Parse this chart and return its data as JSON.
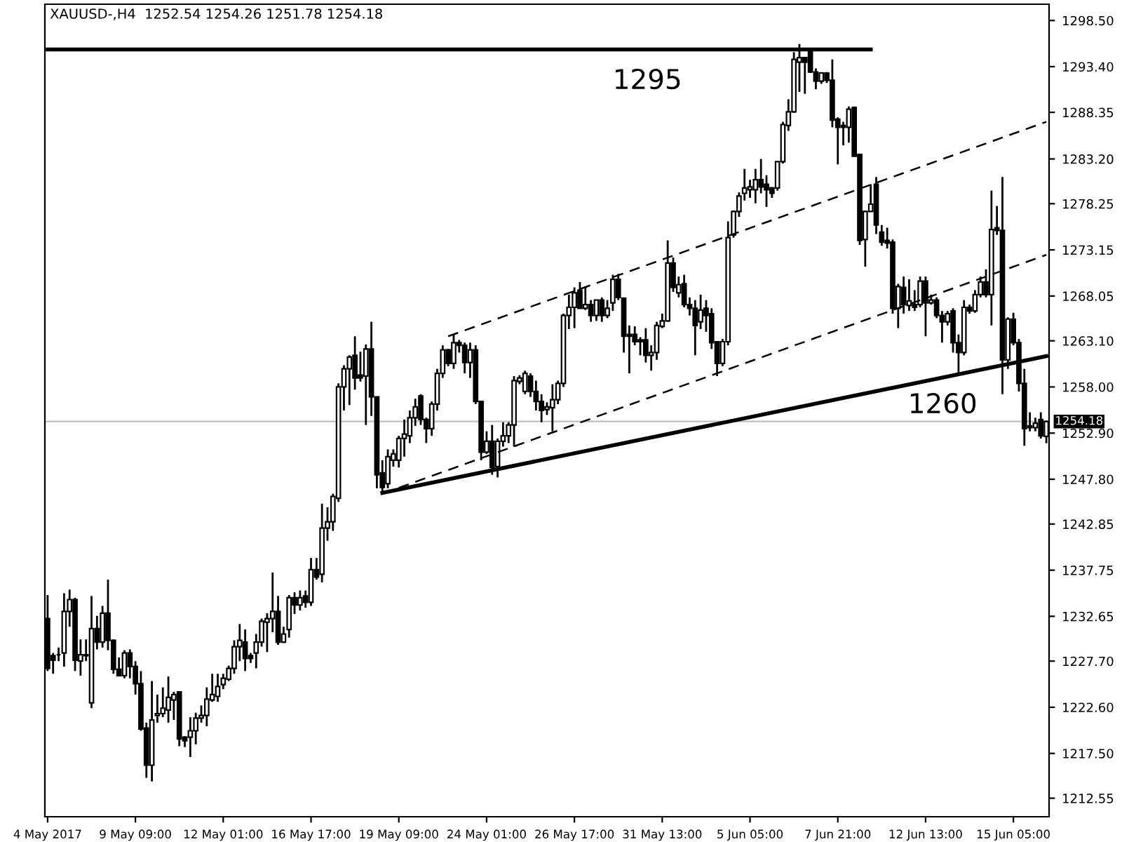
{
  "chart_data": {
    "type": "candlestick",
    "title": "XAUUSD-,H4  1252.54 1254.26 1251.78 1254.18",
    "color": "#000000",
    "categories": [
      "4 May 2017",
      null,
      null,
      null,
      null,
      null,
      null,
      null,
      null,
      null,
      null,
      null,
      null,
      null,
      null,
      null,
      "9 May 09:00",
      null,
      null,
      null,
      null,
      null,
      null,
      null,
      null,
      null,
      null,
      null,
      null,
      null,
      null,
      null,
      "12 May 01:00",
      null,
      null,
      null,
      null,
      null,
      null,
      null,
      null,
      null,
      null,
      null,
      null,
      null,
      null,
      null,
      "16 May 17:00",
      null,
      null,
      null,
      null,
      null,
      null,
      null,
      null,
      null,
      null,
      null,
      null,
      null,
      null,
      null,
      "19 May 09:00",
      null,
      null,
      null,
      null,
      null,
      null,
      null,
      null,
      null,
      null,
      null,
      null,
      null,
      null,
      null,
      "24 May 01:00",
      null,
      null,
      null,
      null,
      null,
      null,
      null,
      null,
      null,
      null,
      null,
      null,
      null,
      null,
      null,
      "26 May 17:00",
      null,
      null,
      null,
      null,
      null,
      null,
      null,
      null,
      null,
      null,
      null,
      null,
      null,
      null,
      null,
      "31 May 13:00",
      null,
      null,
      null,
      null,
      null,
      null,
      null,
      null,
      null,
      null,
      null,
      null,
      null,
      null,
      null,
      "5 Jun 05:00",
      null,
      null,
      null,
      null,
      null,
      null,
      null,
      null,
      null,
      null,
      null,
      null,
      null,
      null,
      null,
      "7 Jun 21:00",
      null,
      null,
      null,
      null,
      null,
      null,
      null,
      null,
      null,
      null,
      null,
      null,
      null,
      null,
      null,
      "12 Jun 13:00",
      null,
      null,
      null,
      null,
      null,
      null,
      null,
      null,
      null,
      null,
      null,
      null,
      null,
      null,
      null,
      "15 Jun 05:00",
      null,
      null,
      null,
      null,
      null,
      null
    ],
    "ohlc": [
      [
        1232.4,
        1235.0,
        1226.6,
        1226.9
      ],
      [
        1228.3,
        1228.6,
        1226.3,
        1227.8
      ],
      [
        1228.4,
        1229.2,
        1227.7,
        1228.4
      ],
      [
        1228.6,
        1235.2,
        1227.1,
        1233.2
      ],
      [
        1233.2,
        1235.6,
        1231.5,
        1234.5
      ],
      [
        1234.5,
        1234.7,
        1226.6,
        1227.8
      ],
      [
        1227.7,
        1230.1,
        1226.1,
        1228.4
      ],
      [
        1228.4,
        1230.1,
        1227.7,
        1228.3
      ],
      [
        1223.1,
        1234.9,
        1222.5,
        1231.3
      ],
      [
        1231.3,
        1232.7,
        1229.0,
        1229.8
      ],
      [
        1229.8,
        1233.8,
        1229.2,
        1233.0
      ],
      [
        1233.0,
        1236.7,
        1228.9,
        1230.0
      ],
      [
        1230.0,
        1230.1,
        1226.3,
        1226.8
      ],
      [
        1226.8,
        1228.1,
        1226.0,
        1226.1
      ],
      [
        1226.1,
        1228.9,
        1225.8,
        1228.6
      ],
      [
        1228.6,
        1229.0,
        1225.8,
        1227.1
      ],
      [
        1227.1,
        1227.7,
        1224.0,
        1225.2
      ],
      [
        1225.2,
        1226.6,
        1220.0,
        1220.2
      ],
      [
        1220.3,
        1220.9,
        1214.8,
        1216.2
      ],
      [
        1216.2,
        1225.5,
        1214.4,
        1221.2
      ],
      [
        1221.7,
        1224.0,
        1220.9,
        1221.9
      ],
      [
        1221.9,
        1224.8,
        1221.5,
        1222.5
      ],
      [
        1222.3,
        1226.0,
        1220.9,
        1223.7
      ],
      [
        1223.4,
        1224.3,
        1221.2,
        1224.0
      ],
      [
        1224.3,
        1224.3,
        1218.3,
        1219.1
      ],
      [
        1219.3,
        1219.4,
        1218.2,
        1218.9
      ],
      [
        1219.3,
        1221.5,
        1217.1,
        1220.0
      ],
      [
        1220.0,
        1222.0,
        1218.5,
        1221.4
      ],
      [
        1221.4,
        1222.8,
        1220.9,
        1221.7
      ],
      [
        1221.7,
        1224.8,
        1220.5,
        1223.5
      ],
      [
        1223.4,
        1226.3,
        1223.2,
        1224.0
      ],
      [
        1223.8,
        1226.3,
        1223.2,
        1224.9
      ],
      [
        1225.1,
        1226.3,
        1224.6,
        1225.8
      ],
      [
        1225.7,
        1227.2,
        1225.5,
        1226.9
      ],
      [
        1226.9,
        1230.0,
        1226.3,
        1229.3
      ],
      [
        1229.3,
        1231.8,
        1227.7,
        1230.0
      ],
      [
        1229.8,
        1231.2,
        1226.6,
        1228.0
      ],
      [
        1228.3,
        1228.6,
        1227.5,
        1228.0
      ],
      [
        1228.6,
        1230.7,
        1226.9,
        1229.8
      ],
      [
        1229.8,
        1232.4,
        1229.3,
        1232.1
      ],
      [
        1232.0,
        1233.0,
        1228.7,
        1232.4
      ],
      [
        1232.4,
        1237.5,
        1230.9,
        1233.2
      ],
      [
        1233.2,
        1234.9,
        1229.5,
        1229.8
      ],
      [
        1229.8,
        1231.5,
        1229.7,
        1230.7
      ],
      [
        1231.2,
        1235.0,
        1230.3,
        1234.7
      ],
      [
        1234.7,
        1235.3,
        1232.9,
        1233.9
      ],
      [
        1233.9,
        1235.5,
        1233.3,
        1234.7
      ],
      [
        1234.9,
        1235.5,
        1233.6,
        1234.2
      ],
      [
        1234.2,
        1239.1,
        1233.8,
        1237.8
      ],
      [
        1237.8,
        1239.1,
        1236.7,
        1237.0
      ],
      [
        1237.3,
        1245.1,
        1236.4,
        1242.4
      ],
      [
        1242.4,
        1244.7,
        1241.0,
        1243.1
      ],
      [
        1243.1,
        1246.2,
        1242.1,
        1245.9
      ],
      [
        1245.7,
        1258.4,
        1245.3,
        1258.0
      ],
      [
        1258.0,
        1260.4,
        1255.4,
        1260.0
      ],
      [
        1260.0,
        1261.5,
        1256.0,
        1261.3
      ],
      [
        1261.5,
        1263.6,
        1257.7,
        1259.0
      ],
      [
        1259.3,
        1261.9,
        1258.6,
        1259.0
      ],
      [
        1259.2,
        1262.7,
        1253.8,
        1262.2
      ],
      [
        1262.2,
        1265.2,
        1254.8,
        1256.9
      ],
      [
        1256.9,
        1256.9,
        1246.8,
        1248.3
      ],
      [
        1248.5,
        1249.9,
        1246.2,
        1246.9
      ],
      [
        1247.3,
        1251.1,
        1246.8,
        1250.3
      ],
      [
        1249.9,
        1251.1,
        1249.2,
        1250.6
      ],
      [
        1249.9,
        1252.6,
        1249.1,
        1252.3
      ],
      [
        1252.3,
        1254.4,
        1250.3,
        1252.8
      ],
      [
        1252.6,
        1255.4,
        1251.8,
        1254.6
      ],
      [
        1254.6,
        1256.7,
        1253.7,
        1255.8
      ],
      [
        1257.0,
        1257.2,
        1253.8,
        1254.4
      ],
      [
        1254.4,
        1254.6,
        1251.8,
        1253.4
      ],
      [
        1253.4,
        1256.4,
        1252.6,
        1256.1
      ],
      [
        1256.1,
        1260.0,
        1255.4,
        1259.5
      ],
      [
        1259.5,
        1262.6,
        1259.0,
        1262.1
      ],
      [
        1262.1,
        1262.2,
        1260.3,
        1260.6
      ],
      [
        1260.6,
        1263.8,
        1260.0,
        1262.9
      ],
      [
        1262.9,
        1263.2,
        1261.8,
        1262.6
      ],
      [
        1262.6,
        1262.9,
        1259.5,
        1260.7
      ],
      [
        1260.7,
        1262.9,
        1259.0,
        1262.1
      ],
      [
        1262.1,
        1262.6,
        1256.1,
        1256.4
      ],
      [
        1256.4,
        1256.4,
        1249.9,
        1250.8
      ],
      [
        1250.8,
        1253.1,
        1250.6,
        1252.0
      ],
      [
        1252.0,
        1253.8,
        1248.3,
        1249.1
      ],
      [
        1249.2,
        1252.3,
        1248.0,
        1252.0
      ],
      [
        1252.0,
        1254.1,
        1251.4,
        1252.6
      ],
      [
        1252.6,
        1254.1,
        1251.8,
        1253.8
      ],
      [
        1253.8,
        1259.2,
        1251.4,
        1258.7
      ],
      [
        1258.6,
        1259.3,
        1258.3,
        1259.0
      ],
      [
        1257.5,
        1259.8,
        1257.2,
        1259.5
      ],
      [
        1259.2,
        1259.5,
        1256.9,
        1257.5
      ],
      [
        1257.5,
        1258.7,
        1255.4,
        1256.4
      ],
      [
        1256.4,
        1257.2,
        1254.1,
        1255.4
      ],
      [
        1255.5,
        1256.3,
        1254.9,
        1255.8
      ],
      [
        1255.7,
        1258.3,
        1253.1,
        1256.6
      ],
      [
        1256.6,
        1258.7,
        1256.1,
        1258.4
      ],
      [
        1258.4,
        1266.1,
        1258.0,
        1265.9
      ],
      [
        1265.9,
        1268.2,
        1264.4,
        1266.8
      ],
      [
        1266.8,
        1269.0,
        1264.5,
        1268.4
      ],
      [
        1268.7,
        1269.6,
        1266.7,
        1266.7
      ],
      [
        1266.7,
        1269.1,
        1266.5,
        1267.1
      ],
      [
        1267.1,
        1267.6,
        1265.2,
        1265.9
      ],
      [
        1265.9,
        1267.6,
        1265.3,
        1267.6
      ],
      [
        1267.6,
        1267.9,
        1265.2,
        1265.9
      ],
      [
        1265.9,
        1267.6,
        1265.6,
        1266.7
      ],
      [
        1267.3,
        1270.4,
        1266.4,
        1269.9
      ],
      [
        1269.9,
        1270.5,
        1267.6,
        1267.9
      ],
      [
        1267.8,
        1267.9,
        1261.8,
        1263.6
      ],
      [
        1263.8,
        1264.8,
        1259.5,
        1263.6
      ],
      [
        1263.8,
        1264.7,
        1262.6,
        1263.0
      ],
      [
        1263.2,
        1263.5,
        1261.5,
        1263.0
      ],
      [
        1263.2,
        1264.5,
        1260.7,
        1261.5
      ],
      [
        1261.5,
        1262.6,
        1259.8,
        1261.8
      ],
      [
        1261.8,
        1265.2,
        1261.0,
        1264.8
      ],
      [
        1264.7,
        1266.1,
        1264.5,
        1265.3
      ],
      [
        1265.3,
        1274.2,
        1265.2,
        1271.7
      ],
      [
        1271.7,
        1272.3,
        1268.5,
        1269.0
      ],
      [
        1268.4,
        1270.2,
        1267.9,
        1269.3
      ],
      [
        1269.4,
        1270.4,
        1266.8,
        1267.1
      ],
      [
        1267.1,
        1267.9,
        1265.9,
        1266.7
      ],
      [
        1266.7,
        1267.6,
        1261.5,
        1264.8
      ],
      [
        1265.2,
        1268.2,
        1264.4,
        1266.5
      ],
      [
        1266.7,
        1267.6,
        1264.1,
        1265.9
      ],
      [
        1266.1,
        1266.7,
        1262.2,
        1262.9
      ],
      [
        1263.0,
        1263.0,
        1259.2,
        1260.6
      ],
      [
        1260.6,
        1263.3,
        1260.3,
        1263.0
      ],
      [
        1263.0,
        1276.3,
        1262.6,
        1274.5
      ],
      [
        1274.8,
        1277.5,
        1274.5,
        1277.4
      ],
      [
        1277.4,
        1279.5,
        1276.8,
        1279.1
      ],
      [
        1279.4,
        1282.1,
        1278.6,
        1280.0
      ],
      [
        1279.8,
        1280.9,
        1278.9,
        1280.1
      ],
      [
        1279.8,
        1282.1,
        1278.3,
        1280.9
      ],
      [
        1280.9,
        1283.2,
        1279.4,
        1280.1
      ],
      [
        1280.4,
        1281.4,
        1277.9,
        1279.8
      ],
      [
        1280.0,
        1280.1,
        1278.9,
        1279.4
      ],
      [
        1280.0,
        1282.9,
        1279.7,
        1282.9
      ],
      [
        1282.9,
        1287.3,
        1282.7,
        1287.0
      ],
      [
        1286.9,
        1289.8,
        1286.3,
        1288.4
      ],
      [
        1288.4,
        1295.0,
        1288.3,
        1294.2
      ],
      [
        1293.9,
        1295.9,
        1290.6,
        1294.4
      ],
      [
        1294.4,
        1294.4,
        1290.4,
        1293.9
      ],
      [
        1295.3,
        1295.4,
        1292.7,
        1292.8
      ],
      [
        1292.8,
        1293.2,
        1290.9,
        1291.8
      ],
      [
        1291.8,
        1292.8,
        1291.5,
        1292.7
      ],
      [
        1292.7,
        1292.8,
        1291.6,
        1291.9
      ],
      [
        1291.9,
        1294.2,
        1286.7,
        1287.5
      ],
      [
        1287.6,
        1287.8,
        1282.6,
        1286.7
      ],
      [
        1286.9,
        1287.3,
        1284.7,
        1286.7
      ],
      [
        1286.7,
        1289.0,
        1285.0,
        1288.7
      ],
      [
        1288.9,
        1289.0,
        1283.5,
        1283.5
      ],
      [
        1283.7,
        1283.7,
        1273.7,
        1274.2
      ],
      [
        1274.3,
        1277.5,
        1271.3,
        1277.4
      ],
      [
        1277.4,
        1280.4,
        1277.4,
        1278.2
      ],
      [
        1280.4,
        1281.2,
        1274.9,
        1275.9
      ],
      [
        1275.1,
        1275.9,
        1273.6,
        1274.0
      ],
      [
        1274.2,
        1275.6,
        1273.3,
        1273.9
      ],
      [
        1274.0,
        1274.3,
        1266.1,
        1266.7
      ],
      [
        1266.7,
        1269.4,
        1264.5,
        1269.1
      ],
      [
        1269.0,
        1270.2,
        1266.1,
        1267.1
      ],
      [
        1267.0,
        1269.9,
        1266.4,
        1267.5
      ],
      [
        1267.1,
        1268.7,
        1266.4,
        1266.8
      ],
      [
        1267.1,
        1270.2,
        1266.8,
        1269.7
      ],
      [
        1269.7,
        1270.2,
        1263.6,
        1267.3
      ],
      [
        1267.3,
        1268.2,
        1267.1,
        1267.6
      ],
      [
        1267.6,
        1267.9,
        1265.6,
        1265.9
      ],
      [
        1265.9,
        1266.4,
        1262.9,
        1265.2
      ],
      [
        1265.2,
        1266.4,
        1264.8,
        1266.1
      ],
      [
        1266.4,
        1266.7,
        1261.8,
        1262.9
      ],
      [
        1262.9,
        1263.8,
        1259.5,
        1261.8
      ],
      [
        1261.8,
        1267.6,
        1261.5,
        1266.8
      ],
      [
        1266.8,
        1267.1,
        1266.1,
        1266.4
      ],
      [
        1266.4,
        1268.7,
        1266.2,
        1268.2
      ],
      [
        1268.2,
        1270.2,
        1267.9,
        1269.6
      ],
      [
        1269.6,
        1271.0,
        1267.9,
        1268.2
      ],
      [
        1268.2,
        1279.7,
        1264.8,
        1275.4
      ],
      [
        1275.6,
        1278.0,
        1274.8,
        1275.3
      ],
      [
        1275.3,
        1281.2,
        1257.2,
        1261.0
      ],
      [
        1261.0,
        1265.7,
        1260.0,
        1265.5
      ],
      [
        1265.5,
        1266.2,
        1262.6,
        1262.9
      ],
      [
        1262.9,
        1263.3,
        1257.5,
        1258.4
      ],
      [
        1258.4,
        1260.0,
        1251.5,
        1253.4
      ],
      [
        1253.7,
        1255.2,
        1253.1,
        1253.5
      ],
      [
        1253.5,
        1254.6,
        1253.1,
        1254.0
      ],
      [
        1254.4,
        1255.2,
        1252.3,
        1252.6
      ],
      [
        1252.54,
        1254.26,
        1251.78,
        1254.18
      ]
    ],
    "series": [
      {
        "type": "line",
        "values": [
          1295.3,
          null,
          null,
          null,
          null,
          null,
          null,
          null,
          null,
          null,
          null,
          null,
          null,
          null,
          null,
          null,
          null,
          null,
          null,
          null,
          null,
          null,
          null,
          null,
          null,
          null,
          null,
          null,
          null,
          null,
          null,
          null,
          null,
          null,
          null,
          null,
          null,
          null,
          null,
          null,
          null,
          null,
          null,
          null,
          null,
          null,
          null,
          null,
          null,
          null,
          null,
          null,
          null,
          null,
          null,
          null,
          null,
          null,
          null,
          null,
          null,
          null,
          null,
          null,
          null,
          null,
          null,
          null,
          null,
          null,
          null,
          null,
          null,
          null,
          null,
          null,
          null,
          null,
          null,
          null,
          null,
          null,
          null,
          null,
          null,
          null,
          null,
          null,
          null,
          null,
          null,
          null,
          null,
          null,
          null,
          null,
          null,
          null,
          null,
          null,
          null,
          null,
          null,
          null,
          null,
          null,
          null,
          null,
          null,
          null,
          null,
          null,
          null,
          null,
          null,
          null,
          null,
          null,
          null,
          null,
          null,
          null,
          null,
          null,
          null,
          null,
          null,
          null,
          null,
          null,
          null,
          null,
          null,
          null,
          null,
          null,
          null,
          null,
          null,
          null,
          null,
          null,
          null,
          null,
          null,
          null,
          null,
          null,
          null,
          null,
          1295.3,
          null,
          null,
          null,
          null,
          null,
          null,
          null,
          null,
          null,
          null,
          null,
          null,
          null,
          null,
          null,
          null,
          null,
          null,
          null,
          null,
          null,
          null,
          null,
          null,
          null,
          null,
          null,
          null,
          null,
          null,
          null,
          null
        ],
        "color": "#000000",
        "line_style": "solid"
      },
      {
        "type": "line",
        "values": [
          null,
          null,
          null,
          null,
          null,
          null,
          null,
          null,
          null,
          null,
          null,
          null,
          null,
          null,
          null,
          null,
          null,
          null,
          null,
          null,
          null,
          null,
          null,
          null,
          null,
          null,
          null,
          null,
          null,
          null,
          null,
          null,
          null,
          null,
          null,
          null,
          null,
          null,
          null,
          null,
          null,
          null,
          null,
          null,
          null,
          null,
          null,
          null,
          null,
          null,
          null,
          null,
          null,
          null,
          null,
          null,
          null,
          null,
          null,
          null,
          null,
          1246.3,
          null,
          null,
          null,
          null,
          null,
          null,
          null,
          null,
          null,
          null,
          null,
          null,
          null,
          null,
          null,
          null,
          null,
          null,
          null,
          null,
          null,
          null,
          null,
          null,
          null,
          null,
          null,
          null,
          null,
          null,
          null,
          null,
          null,
          null,
          null,
          null,
          null,
          null,
          null,
          null,
          null,
          null,
          null,
          null,
          null,
          null,
          null,
          null,
          null,
          null,
          null,
          null,
          null,
          null,
          null,
          null,
          null,
          null,
          null,
          null,
          null,
          null,
          null,
          null,
          null,
          null,
          null,
          null,
          null,
          null,
          null,
          null,
          null,
          null,
          null,
          null,
          null,
          null,
          null,
          null,
          null,
          null,
          null,
          null,
          null,
          null,
          null,
          null,
          null,
          null,
          null,
          null,
          null,
          null,
          null,
          null,
          null,
          null,
          null,
          null,
          null,
          null,
          null,
          null,
          null,
          null,
          null,
          null,
          null,
          null,
          null,
          null,
          null,
          null,
          null,
          null,
          null,
          null,
          null,
          null,
          1261.4
        ],
        "color": "#000000",
        "line_style": "solid"
      },
      {
        "type": "line",
        "values": [
          null,
          null,
          null,
          null,
          null,
          null,
          null,
          null,
          null,
          null,
          null,
          null,
          null,
          null,
          null,
          null,
          null,
          null,
          null,
          null,
          null,
          null,
          null,
          null,
          null,
          null,
          null,
          null,
          null,
          null,
          null,
          null,
          null,
          null,
          null,
          null,
          null,
          null,
          null,
          null,
          null,
          null,
          null,
          null,
          null,
          null,
          null,
          null,
          null,
          null,
          null,
          null,
          null,
          null,
          null,
          null,
          null,
          null,
          null,
          null,
          null,
          null,
          null,
          null,
          null,
          null,
          null,
          null,
          null,
          null,
          null,
          null,
          null,
          1263.6,
          null,
          null,
          null,
          null,
          null,
          null,
          null,
          null,
          null,
          null,
          null,
          null,
          null,
          null,
          null,
          null,
          null,
          null,
          null,
          null,
          null,
          null,
          null,
          null,
          null,
          null,
          null,
          null,
          null,
          null,
          null,
          null,
          null,
          null,
          null,
          null,
          null,
          null,
          null,
          null,
          null,
          null,
          null,
          null,
          null,
          null,
          null,
          null,
          null,
          null,
          null,
          null,
          null,
          null,
          null,
          null,
          null,
          null,
          null,
          null,
          null,
          null,
          null,
          null,
          null,
          null,
          null,
          null,
          null,
          null,
          null,
          null,
          null,
          null,
          null,
          null,
          null,
          null,
          null,
          null,
          null,
          null,
          null,
          null,
          null,
          null,
          null,
          null,
          null,
          null,
          null,
          null,
          null,
          null,
          null,
          null,
          null,
          null,
          null,
          null,
          null,
          null,
          null,
          null,
          null,
          null,
          null,
          null,
          1287.3
        ],
        "color": "#000000",
        "line_style": "dashed"
      },
      {
        "type": "line",
        "values": [
          null,
          null,
          null,
          null,
          null,
          null,
          null,
          null,
          null,
          null,
          null,
          null,
          null,
          null,
          null,
          null,
          null,
          null,
          null,
          null,
          null,
          null,
          null,
          null,
          null,
          null,
          null,
          null,
          null,
          null,
          null,
          null,
          null,
          null,
          null,
          null,
          null,
          null,
          null,
          null,
          null,
          null,
          null,
          null,
          null,
          null,
          null,
          null,
          null,
          null,
          null,
          null,
          null,
          null,
          null,
          null,
          null,
          null,
          null,
          null,
          null,
          1246.2,
          null,
          null,
          null,
          null,
          null,
          null,
          null,
          null,
          null,
          null,
          null,
          null,
          null,
          null,
          null,
          null,
          null,
          null,
          null,
          null,
          null,
          null,
          null,
          null,
          null,
          null,
          null,
          null,
          null,
          null,
          null,
          null,
          null,
          null,
          null,
          null,
          null,
          null,
          null,
          null,
          null,
          null,
          null,
          null,
          null,
          null,
          null,
          null,
          null,
          null,
          null,
          null,
          null,
          null,
          null,
          null,
          null,
          null,
          null,
          null,
          null,
          null,
          null,
          null,
          null,
          null,
          null,
          null,
          null,
          null,
          null,
          null,
          null,
          null,
          null,
          null,
          null,
          null,
          null,
          null,
          null,
          null,
          null,
          null,
          null,
          null,
          null,
          null,
          null,
          null,
          null,
          null,
          null,
          null,
          null,
          null,
          null,
          null,
          null,
          null,
          null,
          null,
          null,
          null,
          null,
          null,
          null,
          null,
          null,
          null,
          null,
          null,
          null,
          null,
          null,
          null,
          null,
          null,
          null,
          null,
          1272.6
        ],
        "color": "#000000",
        "line_style": "dashed"
      }
    ],
    "ref_lines": [
      {
        "axis": "y",
        "value": 1254.18,
        "label": "1254.18",
        "color": "#c0c0c0"
      }
    ],
    "annotations": [
      "1295",
      "1260"
    ],
    "ylim": [
      1210.5,
      1300.3
    ],
    "yticks": [
      {
        "value": 1298.5,
        "label": "1298.50"
      },
      {
        "value": 1293.4,
        "label": "1293.40"
      },
      {
        "value": 1288.35,
        "label": "1288.35"
      },
      {
        "value": 1283.2,
        "label": "1283.20"
      },
      {
        "value": 1278.25,
        "label": "1278.25"
      },
      {
        "value": 1273.15,
        "label": "1273.15"
      },
      {
        "value": 1268.05,
        "label": "1268.05"
      },
      {
        "value": 1263.1,
        "label": "1263.10"
      },
      {
        "value": 1258.0,
        "label": "1258.00"
      },
      {
        "value": 1252.9,
        "label": "1252.90"
      },
      {
        "value": 1247.8,
        "label": "1247.80"
      },
      {
        "value": 1242.85,
        "label": "1242.85"
      },
      {
        "value": 1237.75,
        "label": "1237.75"
      },
      {
        "value": 1232.65,
        "label": "1232.65"
      },
      {
        "value": 1227.7,
        "label": "1227.70"
      },
      {
        "value": 1222.6,
        "label": "1222.60"
      },
      {
        "value": 1217.5,
        "label": "1217.50"
      },
      {
        "value": 1212.55,
        "label": "1212.55"
      }
    ],
    "grid": false,
    "legend": false
  }
}
